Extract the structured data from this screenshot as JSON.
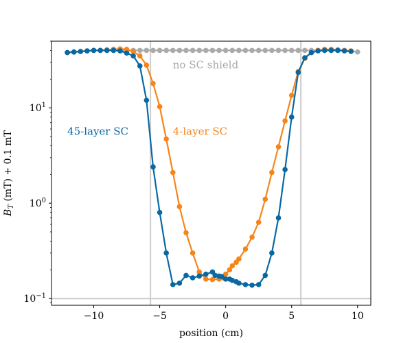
{
  "chart_data": {
    "type": "line",
    "title": "",
    "xlabel": "position (cm)",
    "ylabel_main": "B",
    "ylabel_sub": "T",
    "ylabel_rest": " (mT) + 0.1 mT",
    "xlim": [
      -13.2,
      11.0
    ],
    "ylim": [
      0.085,
      50
    ],
    "yscale": "log",
    "x_ticks": [
      -10,
      -5,
      0,
      5,
      10
    ],
    "x_tick_labels": [
      "−10",
      "−5",
      "0",
      "5",
      "10"
    ],
    "y_ticks": [
      0.1,
      1,
      10
    ],
    "y_tick_bases": [
      "10",
      "10",
      "10"
    ],
    "y_tick_exps": [
      "−1",
      "0",
      "1"
    ],
    "vlines": [
      -5.7,
      5.7
    ],
    "hlines": [
      0.1
    ],
    "reference_line_color": "#cccccc",
    "annotations": [
      {
        "text": "no SC shield",
        "x": -4.0,
        "y": 26,
        "color": "#aaaaaa"
      },
      {
        "text": "45-layer SC",
        "x": -12.0,
        "y": 5.2,
        "color": "#0868a4"
      },
      {
        "text": "4-layer SC",
        "x": -4.0,
        "y": 5.2,
        "color": "#f58518"
      }
    ],
    "series": [
      {
        "color": "#aaaaaa",
        "x": [
          -12.0,
          -11.5,
          -11.0,
          -10.5,
          -10.0,
          -9.5,
          -9.0,
          -8.5,
          -8.0,
          -7.5,
          -7.0,
          -6.5,
          -6.0,
          -5.5,
          -5.0,
          -4.5,
          -4.0,
          -3.5,
          -3.0,
          -2.5,
          -2.0,
          -1.5,
          -1.0,
          -0.5,
          0.0,
          0.5,
          1.0,
          1.5,
          2.0,
          2.5,
          3.0,
          3.5,
          4.0,
          4.5,
          5.0,
          5.5,
          6.0,
          6.5,
          7.0,
          7.5,
          8.0,
          8.5,
          9.0,
          9.5,
          10.0
        ],
        "y": [
          38,
          38.5,
          39,
          39.5,
          40,
          40,
          40,
          40,
          40,
          40,
          40,
          40,
          40,
          40,
          40,
          40,
          40,
          40,
          40,
          40,
          40,
          40,
          40,
          40,
          40,
          40,
          40,
          40,
          40,
          40,
          40,
          40,
          40,
          40,
          40,
          40,
          40,
          40,
          40,
          40,
          40,
          40,
          40,
          39.5,
          38.5
        ]
      },
      {
        "color": "#f58518",
        "x": [
          -12.0,
          -11.5,
          -11.0,
          -10.5,
          -10.0,
          -9.5,
          -9.0,
          -8.5,
          -8.0,
          -7.5,
          -7.0,
          -6.5,
          -6.0,
          -5.5,
          -5.0,
          -4.5,
          -4.0,
          -3.5,
          -3.0,
          -2.5,
          -2.0,
          -1.5,
          -1.0,
          -0.5,
          -0.2,
          0.0,
          0.3,
          0.5,
          0.8,
          1.0,
          1.5,
          2.0,
          2.5,
          3.0,
          3.5,
          4.0,
          4.5,
          5.0,
          5.5,
          6.0,
          6.5,
          7.0,
          7.5,
          8.0,
          8.5,
          9.0,
          9.5
        ],
        "y": [
          38,
          38.5,
          39,
          39.5,
          40,
          40,
          40.5,
          41,
          41.5,
          41,
          39,
          35,
          28,
          18,
          10.3,
          4.7,
          2.1,
          0.92,
          0.49,
          0.3,
          0.19,
          0.16,
          0.158,
          0.16,
          0.165,
          0.18,
          0.2,
          0.22,
          0.24,
          0.26,
          0.33,
          0.44,
          0.63,
          1.1,
          2.1,
          3.9,
          7.3,
          13.5,
          24,
          33,
          38,
          40,
          41,
          41,
          40.5,
          40,
          39.5
        ]
      },
      {
        "color": "#0868a4",
        "x": [
          -12.0,
          -11.5,
          -11.0,
          -10.5,
          -10.0,
          -9.5,
          -9.0,
          -8.5,
          -8.0,
          -7.5,
          -7.0,
          -6.5,
          -6.0,
          -5.5,
          -5.0,
          -4.5,
          -4.0,
          -3.5,
          -3.0,
          -2.5,
          -2.0,
          -1.5,
          -1.0,
          -0.8,
          -0.5,
          -0.3,
          0.0,
          0.3,
          0.5,
          0.8,
          1.0,
          1.5,
          2.0,
          2.5,
          3.0,
          3.5,
          4.0,
          4.5,
          5.0,
          5.5,
          6.0,
          6.5,
          7.0,
          7.5,
          8.0,
          8.5,
          9.0,
          9.5
        ],
        "y": [
          38,
          38.5,
          39,
          39.5,
          40,
          40,
          40,
          40,
          39.5,
          37.5,
          35,
          27.5,
          12,
          2.4,
          0.8,
          0.3,
          0.14,
          0.145,
          0.175,
          0.165,
          0.172,
          0.18,
          0.19,
          0.175,
          0.172,
          0.17,
          0.16,
          0.16,
          0.155,
          0.15,
          0.145,
          0.14,
          0.138,
          0.14,
          0.175,
          0.3,
          0.7,
          2.25,
          8,
          23.5,
          33.5,
          38,
          39.5,
          40,
          40,
          40,
          39.5,
          39
        ]
      }
    ]
  }
}
